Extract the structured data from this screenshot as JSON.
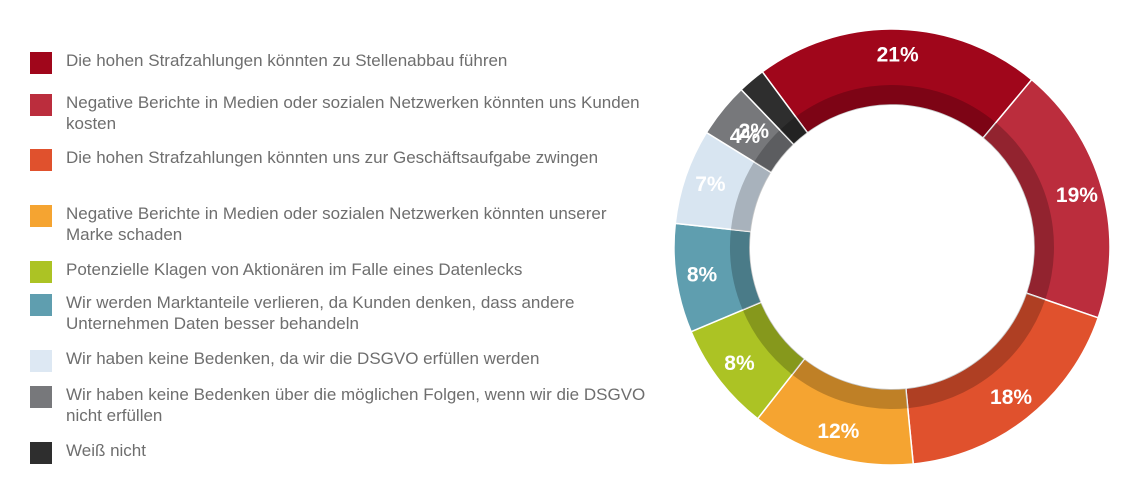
{
  "chart_data": {
    "type": "pie",
    "categories": [
      "Die hohen Strafzahlungen könnten zu Stellenabbau führen",
      "Negative Berichte in Medien oder sozialen Netzwerken könnten uns Kunden kosten",
      "Die hohen Strafzahlungen könnten uns zur Geschäftsaufgabe zwingen",
      "Negative Berichte in Medien oder sozialen Netzwerken könnten unserer Marke schaden",
      "Potenzielle Klagen von Aktionären im Falle eines Datenlecks",
      "Wir werden Marktanteile verlieren, da Kunden denken, dass andere Unternehmen Daten besser behandeln",
      "Wir haben keine Bedenken, da wir die DSGVO erfüllen werden",
      "Wir haben keine Bedenken über die möglichen Folgen, wenn wir die DSGVO nicht erfüllen",
      "Weiß nicht"
    ],
    "values": [
      21,
      19,
      18,
      12,
      8,
      8,
      7,
      4,
      2
    ],
    "value_labels": [
      "21%",
      "19%",
      "18%",
      "12%",
      "8%",
      "8%",
      "7%",
      "4%",
      "2%"
    ],
    "colors": [
      "#a0061b",
      "#bb2d3d",
      "#e0512d",
      "#f5a431",
      "#acc324",
      "#5f9eaf",
      "#d8e5f1",
      "#77787b",
      "#2e2e2e"
    ],
    "label_colors": [
      "#ffffff",
      "#ffffff",
      "#ffffff",
      "#ffffff",
      "#ffffff",
      "#ffffff",
      "#ffffff",
      "#ffffff",
      "#ffffff"
    ],
    "legend_position": "left",
    "donut": true
  }
}
